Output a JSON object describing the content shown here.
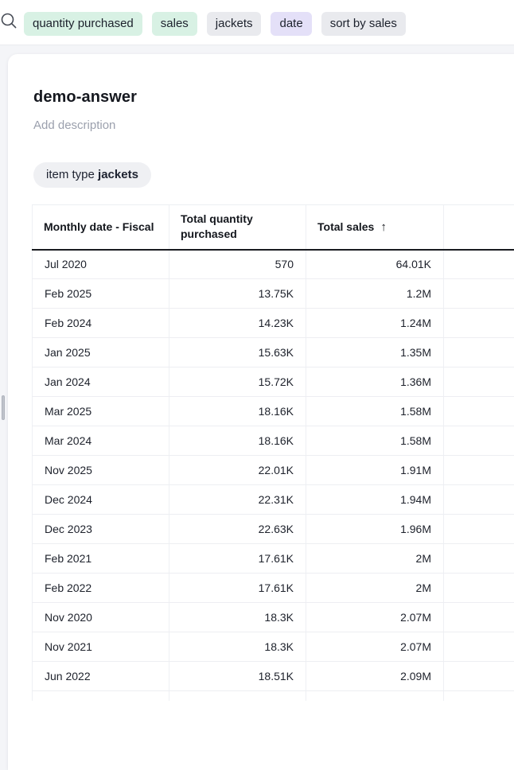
{
  "search_bar": {
    "tokens": [
      {
        "label": "quantity purchased",
        "bg": "#d8f1e4"
      },
      {
        "label": "sales",
        "bg": "#d8f1e4"
      },
      {
        "label": "jackets",
        "bg": "#e9eaee"
      },
      {
        "label": "date",
        "bg": "#e4e0f8"
      },
      {
        "label": "sort by sales",
        "bg": "#e9eaee"
      }
    ],
    "icon": "search-icon"
  },
  "answer": {
    "title": "demo-answer",
    "description_placeholder": "Add description",
    "filter_chip": {
      "attribute": "item type ",
      "value": "jackets"
    }
  },
  "table": {
    "columns": [
      {
        "label": "Monthly date - Fiscal",
        "align": "left"
      },
      {
        "label": "Total quantity purchased",
        "align": "right"
      },
      {
        "label": "Total sales",
        "align": "right",
        "sort": "asc",
        "sort_icon": "↑"
      },
      {
        "label": "",
        "align": "left"
      }
    ],
    "rows": [
      {
        "date": "Jul 2020",
        "quantity": "570",
        "sales": "64.01K"
      },
      {
        "date": "Feb 2025",
        "quantity": "13.75K",
        "sales": "1.2M"
      },
      {
        "date": "Feb 2024",
        "quantity": "14.23K",
        "sales": "1.24M"
      },
      {
        "date": "Jan 2025",
        "quantity": "15.63K",
        "sales": "1.35M"
      },
      {
        "date": "Jan 2024",
        "quantity": "15.72K",
        "sales": "1.36M"
      },
      {
        "date": "Mar 2025",
        "quantity": "18.16K",
        "sales": "1.58M"
      },
      {
        "date": "Mar 2024",
        "quantity": "18.16K",
        "sales": "1.58M"
      },
      {
        "date": "Nov 2025",
        "quantity": "22.01K",
        "sales": "1.91M"
      },
      {
        "date": "Dec 2024",
        "quantity": "22.31K",
        "sales": "1.94M"
      },
      {
        "date": "Dec 2023",
        "quantity": "22.63K",
        "sales": "1.96M"
      },
      {
        "date": "Feb 2021",
        "quantity": "17.61K",
        "sales": "2M"
      },
      {
        "date": "Feb 2022",
        "quantity": "17.61K",
        "sales": "2M"
      },
      {
        "date": "Nov 2020",
        "quantity": "18.3K",
        "sales": "2.07M"
      },
      {
        "date": "Nov 2021",
        "quantity": "18.3K",
        "sales": "2.07M"
      },
      {
        "date": "Jun 2022",
        "quantity": "18.51K",
        "sales": "2.09M"
      }
    ]
  },
  "colors": {
    "page_bg": "#f4f5f8",
    "card_bg": "#ffffff",
    "token_green": "#d8f1e4",
    "token_gray": "#e9eaee",
    "token_purple": "#e4e0f8",
    "header_divider": "#191b20",
    "row_border": "#edeef2"
  }
}
